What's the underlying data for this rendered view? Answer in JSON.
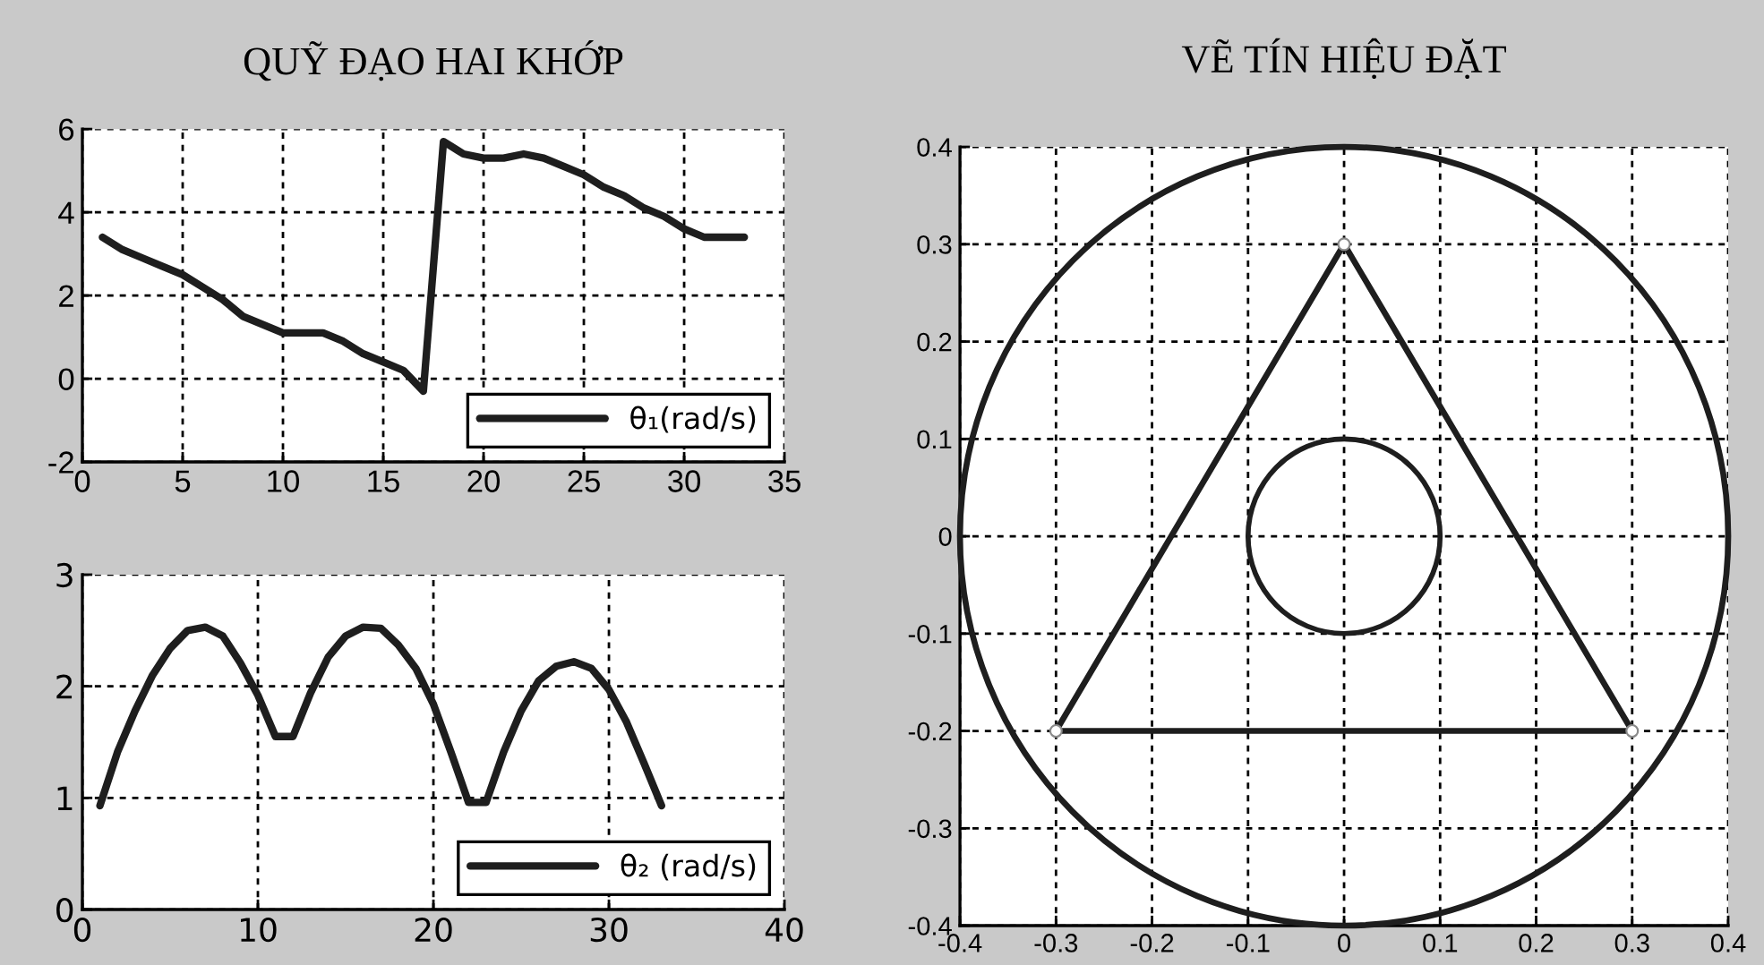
{
  "chart_data": [
    {
      "type": "line",
      "title": "QUỸ ĐẠO HAI KHỚP",
      "x": [
        1,
        2,
        3,
        4,
        5,
        6,
        7,
        8,
        9,
        10,
        11,
        12,
        13,
        14,
        15,
        16,
        17,
        18,
        19,
        20,
        21,
        22,
        23,
        24,
        25,
        26,
        27,
        28,
        29,
        30,
        31,
        32,
        33
      ],
      "series": [
        {
          "name": "θ₁(rad/s)",
          "color": "#1e1e1e",
          "values": [
            3.4,
            3.1,
            2.9,
            2.7,
            2.5,
            2.2,
            1.9,
            1.5,
            1.3,
            1.1,
            1.1,
            1.1,
            0.9,
            0.6,
            0.4,
            0.2,
            -0.3,
            5.7,
            5.4,
            5.3,
            5.3,
            5.4,
            5.3,
            5.1,
            4.9,
            4.6,
            4.4,
            4.1,
            3.9,
            3.6,
            3.4,
            3.4,
            3.4
          ]
        }
      ],
      "xlim": [
        0,
        35
      ],
      "xticks": [
        0,
        5,
        10,
        15,
        20,
        25,
        30,
        35
      ],
      "ylim": [
        -2,
        6
      ],
      "yticks": [
        -2,
        0,
        2,
        4,
        6
      ],
      "grid": true,
      "legend": "bottom right"
    },
    {
      "type": "line",
      "x": [
        1,
        2,
        3,
        4,
        5,
        6,
        7,
        8,
        9,
        10,
        11,
        12,
        13,
        14,
        15,
        16,
        17,
        18,
        19,
        20,
        21,
        22,
        23,
        24,
        25,
        26,
        27,
        28,
        29,
        30,
        31,
        32,
        33
      ],
      "series": [
        {
          "name": "θ₂ (rad/s)",
          "color": "#1e1e1e",
          "values": [
            0.93,
            1.41,
            1.78,
            2.1,
            2.34,
            2.5,
            2.53,
            2.45,
            2.21,
            1.92,
            1.55,
            1.55,
            1.94,
            2.26,
            2.45,
            2.53,
            2.52,
            2.37,
            2.16,
            1.84,
            1.41,
            0.96,
            0.96,
            1.41,
            1.78,
            2.05,
            2.18,
            2.22,
            2.16,
            1.97,
            1.68,
            1.31,
            0.93
          ]
        }
      ],
      "xlim": [
        0,
        40
      ],
      "xticks": [
        0,
        10,
        20,
        30,
        40
      ],
      "ylim": [
        0,
        3
      ],
      "yticks": [
        0,
        1,
        2,
        3
      ],
      "grid": true,
      "legend": "bottom right"
    },
    {
      "type": "line",
      "title": "VẼ TÍN HIỆU ĐẶT",
      "xlim": [
        -0.4,
        0.4
      ],
      "xticks": [
        -0.4,
        -0.3,
        -0.2,
        -0.1,
        0,
        0.1,
        0.2,
        0.3,
        0.4
      ],
      "ylim": [
        -0.4,
        0.4
      ],
      "yticks": [
        -0.4,
        -0.3,
        -0.2,
        -0.1,
        0,
        0.1,
        0.2,
        0.3,
        0.4
      ],
      "grid": true
    }
  ]
}
